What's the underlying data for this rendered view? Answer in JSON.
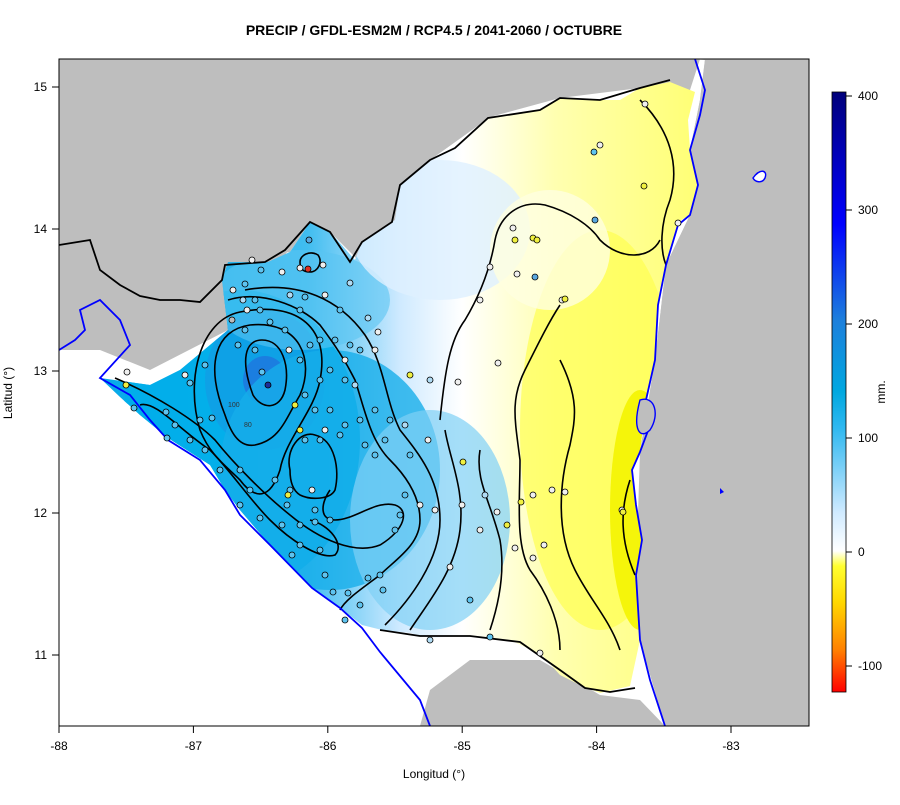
{
  "title": "PRECIP / GFDL-ESM2M / RCP4.5 / 2041-2060 / OCTUBRE",
  "xlabel": "Longitud (°)",
  "ylabel": "Latitud (°)",
  "x_ticks": [
    "-88",
    "-87",
    "-86",
    "-85",
    "-84",
    "-83"
  ],
  "y_ticks": [
    "15",
    "14",
    "13",
    "12",
    "11"
  ],
  "colorbar": {
    "unit": "mm.",
    "ticks": [
      "400",
      "300",
      "200",
      "100",
      "0",
      "-100"
    ],
    "range": [
      -120,
      405
    ]
  },
  "contour_labels": [
    "100",
    "80"
  ],
  "colors": {
    "land_outside": "#bebebe",
    "coastline": "#0000ff",
    "border": "#000000"
  },
  "extent": {
    "lon": [
      -88,
      -82.4
    ],
    "lat": [
      10.5,
      15.2
    ]
  }
}
